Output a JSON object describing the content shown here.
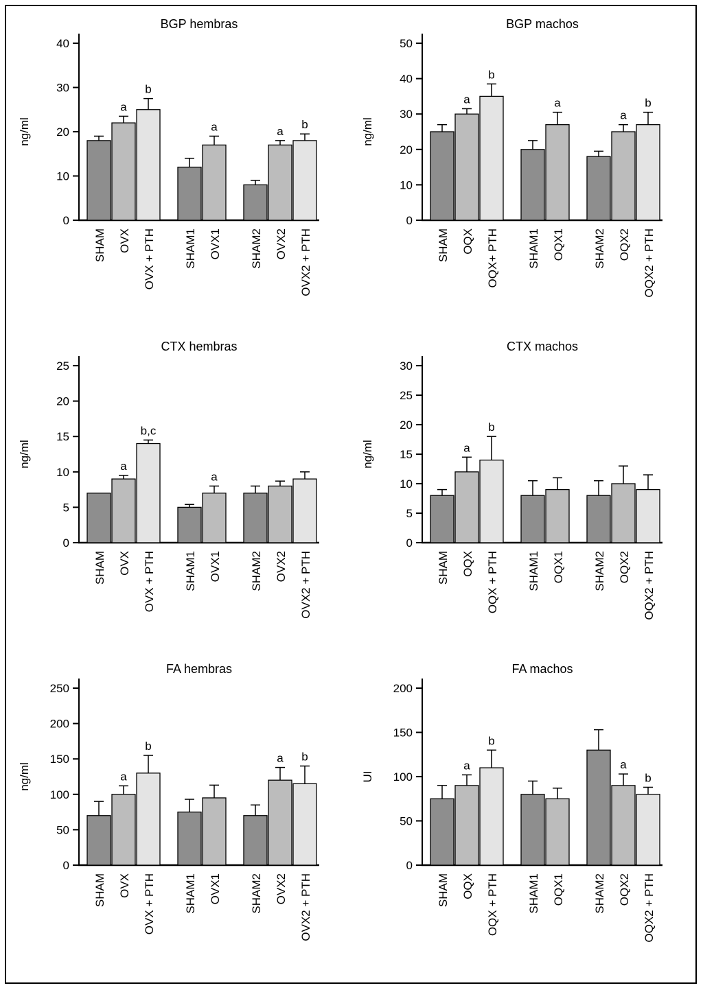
{
  "figure": {
    "type": "bar-chart-panel",
    "rows": 3,
    "cols": 2,
    "description_titles": [
      "BGP hembras",
      "BGP machos",
      "CTX hembras",
      "CTX machos",
      "FA hembras",
      "FA machos"
    ]
  },
  "colors": {
    "dark": "#8e8e8e",
    "mid": "#bcbcbc",
    "light": "#e4e4e4",
    "axis": "#000000",
    "background": "#ffffff"
  },
  "chart_data": [
    {
      "type": "bar",
      "id": "bgp-hembras",
      "title": "BGP hembras",
      "ylabel": "ng/ml",
      "ylim": [
        0,
        40
      ],
      "yticks": [
        0,
        10,
        20,
        30,
        40
      ],
      "groups": [
        3,
        2,
        3
      ],
      "bars": [
        {
          "label": "SHAM",
          "value": 18,
          "error": 1,
          "sig": "",
          "shade": "dark"
        },
        {
          "label": "OVX",
          "value": 22,
          "error": 1.5,
          "sig": "a",
          "shade": "mid"
        },
        {
          "label": "OVX + PTH",
          "value": 25,
          "error": 2.5,
          "sig": "b",
          "shade": "light"
        },
        {
          "label": "SHAM1",
          "value": 12,
          "error": 2,
          "sig": "",
          "shade": "dark"
        },
        {
          "label": "OVX1",
          "value": 17,
          "error": 2,
          "sig": "a",
          "shade": "mid"
        },
        {
          "label": "SHAM2",
          "value": 8,
          "error": 1,
          "sig": "",
          "shade": "dark"
        },
        {
          "label": "OVX2",
          "value": 17,
          "error": 1,
          "sig": "a",
          "shade": "mid"
        },
        {
          "label": "OVX2 + PTH",
          "value": 18,
          "error": 1.5,
          "sig": "b",
          "shade": "light"
        }
      ]
    },
    {
      "type": "bar",
      "id": "bgp-machos",
      "title": "BGP machos",
      "ylabel": "ng/ml",
      "ylim": [
        0,
        50
      ],
      "yticks": [
        0,
        10,
        20,
        30,
        40,
        50
      ],
      "groups": [
        3,
        2,
        3
      ],
      "bars": [
        {
          "label": "SHAM",
          "value": 25,
          "error": 2,
          "sig": "",
          "shade": "dark"
        },
        {
          "label": "OQX",
          "value": 30,
          "error": 1.5,
          "sig": "a",
          "shade": "mid"
        },
        {
          "label": "OQX+ PTH",
          "value": 35,
          "error": 3.5,
          "sig": "b",
          "shade": "light"
        },
        {
          "label": "SHAM1",
          "value": 20,
          "error": 2.5,
          "sig": "",
          "shade": "dark"
        },
        {
          "label": "OQX1",
          "value": 27,
          "error": 3.5,
          "sig": "a",
          "shade": "mid"
        },
        {
          "label": "SHAM2",
          "value": 18,
          "error": 1.5,
          "sig": "",
          "shade": "dark"
        },
        {
          "label": "OQX2",
          "value": 25,
          "error": 2,
          "sig": "a",
          "shade": "mid"
        },
        {
          "label": "OQX2 + PTH",
          "value": 27,
          "error": 3.5,
          "sig": "b",
          "shade": "light"
        }
      ]
    },
    {
      "type": "bar",
      "id": "ctx-hembras",
      "title": "CTX hembras",
      "ylabel": "ng/ml",
      "ylim": [
        0,
        25
      ],
      "yticks": [
        0,
        5,
        10,
        15,
        20,
        25
      ],
      "groups": [
        3,
        2,
        3
      ],
      "bars": [
        {
          "label": "SHAM",
          "value": 7,
          "error": 0,
          "sig": "",
          "shade": "dark"
        },
        {
          "label": "OVX",
          "value": 9,
          "error": 0.5,
          "sig": "a",
          "shade": "mid"
        },
        {
          "label": "OVX + PTH",
          "value": 14,
          "error": 0.5,
          "sig": "b,c",
          "shade": "light"
        },
        {
          "label": "SHAM1",
          "value": 5,
          "error": 0.4,
          "sig": "",
          "shade": "dark"
        },
        {
          "label": "OVX1",
          "value": 7,
          "error": 1,
          "sig": "a",
          "shade": "mid"
        },
        {
          "label": "SHAM2",
          "value": 7,
          "error": 1,
          "sig": "",
          "shade": "dark"
        },
        {
          "label": "OVX2",
          "value": 8,
          "error": 0.7,
          "sig": "",
          "shade": "mid"
        },
        {
          "label": "OVX2 + PTH",
          "value": 9,
          "error": 1,
          "sig": "",
          "shade": "light"
        }
      ]
    },
    {
      "type": "bar",
      "id": "ctx-machos",
      "title": "CTX machos",
      "ylabel": "ng/ml",
      "ylim": [
        0,
        30
      ],
      "yticks": [
        0,
        5,
        10,
        15,
        20,
        25,
        30
      ],
      "groups": [
        3,
        2,
        3
      ],
      "bars": [
        {
          "label": "SHAM",
          "value": 8,
          "error": 1,
          "sig": "",
          "shade": "dark"
        },
        {
          "label": "OQX",
          "value": 12,
          "error": 2.5,
          "sig": "a",
          "shade": "mid"
        },
        {
          "label": "OQX + PTH",
          "value": 14,
          "error": 4,
          "sig": "b",
          "shade": "light"
        },
        {
          "label": "SHAM1",
          "value": 8,
          "error": 2.5,
          "sig": "",
          "shade": "dark"
        },
        {
          "label": "OQX1",
          "value": 9,
          "error": 2,
          "sig": "",
          "shade": "mid"
        },
        {
          "label": "SHAM2",
          "value": 8,
          "error": 2.5,
          "sig": "",
          "shade": "dark"
        },
        {
          "label": "OQX2",
          "value": 10,
          "error": 3,
          "sig": "",
          "shade": "mid"
        },
        {
          "label": "OQX2 + PTH",
          "value": 9,
          "error": 2.5,
          "sig": "",
          "shade": "light"
        }
      ]
    },
    {
      "type": "bar",
      "id": "fa-hembras",
      "title": "FA hembras",
      "ylabel": "ng/ml",
      "ylim": [
        0,
        250
      ],
      "yticks": [
        0,
        50,
        100,
        150,
        200,
        250
      ],
      "groups": [
        3,
        2,
        3
      ],
      "bars": [
        {
          "label": "SHAM",
          "value": 70,
          "error": 20,
          "sig": "",
          "shade": "dark"
        },
        {
          "label": "OVX",
          "value": 100,
          "error": 12,
          "sig": "a",
          "shade": "mid"
        },
        {
          "label": "OVX + PTH",
          "value": 130,
          "error": 25,
          "sig": "b",
          "shade": "light"
        },
        {
          "label": "SHAM1",
          "value": 75,
          "error": 18,
          "sig": "",
          "shade": "dark"
        },
        {
          "label": "OVX1",
          "value": 95,
          "error": 18,
          "sig": "",
          "shade": "mid"
        },
        {
          "label": "SHAM2",
          "value": 70,
          "error": 15,
          "sig": "",
          "shade": "dark"
        },
        {
          "label": "OVX2",
          "value": 120,
          "error": 18,
          "sig": "a",
          "shade": "mid"
        },
        {
          "label": "OVX2 + PTH",
          "value": 115,
          "error": 25,
          "sig": "b",
          "shade": "light"
        }
      ]
    },
    {
      "type": "bar",
      "id": "fa-machos",
      "title": "FA machos",
      "ylabel": "UI",
      "ylim": [
        0,
        200
      ],
      "yticks": [
        0,
        50,
        100,
        150,
        200
      ],
      "groups": [
        3,
        2,
        3
      ],
      "bars": [
        {
          "label": "SHAM",
          "value": 75,
          "error": 15,
          "sig": "",
          "shade": "dark"
        },
        {
          "label": "OQX",
          "value": 90,
          "error": 12,
          "sig": "a",
          "shade": "mid"
        },
        {
          "label": "OQX + PTH",
          "value": 110,
          "error": 20,
          "sig": "b",
          "shade": "light"
        },
        {
          "label": "SHAM1",
          "value": 80,
          "error": 15,
          "sig": "",
          "shade": "dark"
        },
        {
          "label": "OQX1",
          "value": 75,
          "error": 12,
          "sig": "",
          "shade": "mid"
        },
        {
          "label": "SHAM2",
          "value": 130,
          "error": 23,
          "sig": "",
          "shade": "dark"
        },
        {
          "label": "OQX2",
          "value": 90,
          "error": 13,
          "sig": "a",
          "shade": "mid"
        },
        {
          "label": "OQX2 + PTH",
          "value": 80,
          "error": 8,
          "sig": "b",
          "shade": "light"
        }
      ]
    }
  ]
}
